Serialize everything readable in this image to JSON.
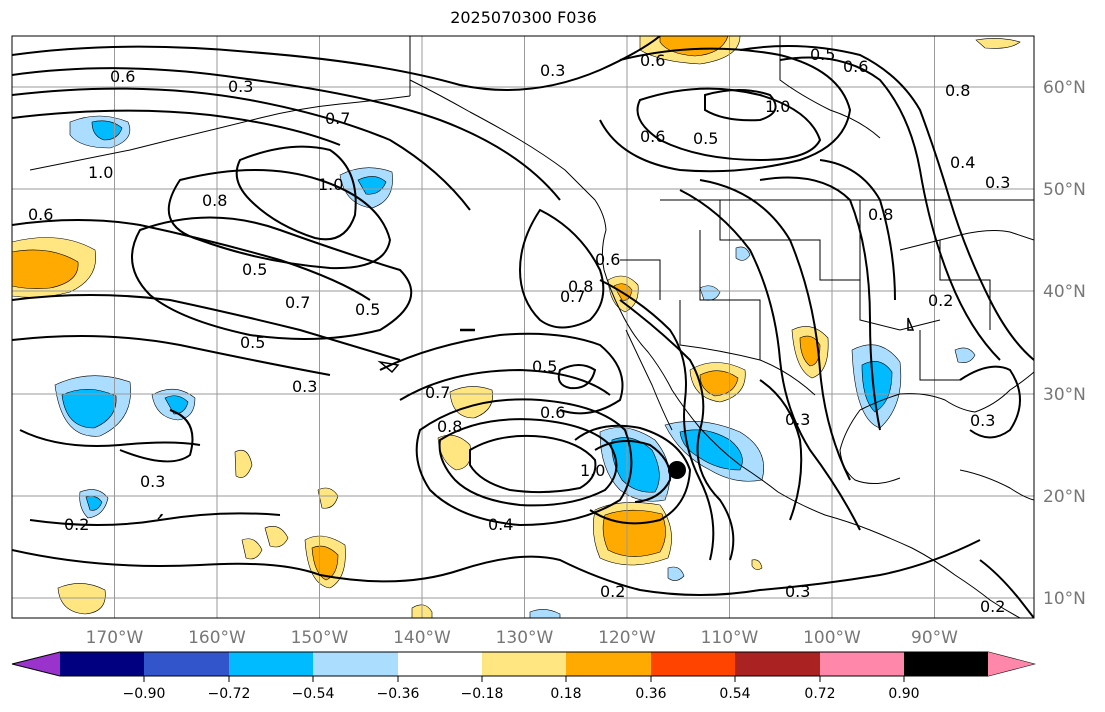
{
  "title": "2025070300 F036",
  "lon_labels": [
    "170°W",
    "160°W",
    "150°W",
    "140°W",
    "130°W",
    "120°W",
    "110°W",
    "100°W",
    "90°W"
  ],
  "lat_labels": [
    "60°N",
    "50°N",
    "40°N",
    "30°N",
    "20°N",
    "10°N"
  ],
  "colorbar": {
    "ticks": [
      "−0.90",
      "−0.72",
      "−0.54",
      "−0.36",
      "−0.18",
      "0.18",
      "0.36",
      "0.54",
      "0.72",
      "0.90"
    ],
    "colors": [
      "#9933cc",
      "#000080",
      "#3355cc",
      "#00bbff",
      "#aaddff",
      "#ffffff",
      "#ffe680",
      "#ffaa00",
      "#ff4400",
      "#aa2222",
      "#ff88aa"
    ]
  },
  "contour_labels": [
    {
      "text": "0.3"
    },
    {
      "text": "0.6"
    },
    {
      "text": "0.7"
    },
    {
      "text": "1.0"
    },
    {
      "text": "0.8"
    },
    {
      "text": "0.6"
    },
    {
      "text": "0.5"
    },
    {
      "text": "0.7"
    },
    {
      "text": "0.5"
    },
    {
      "text": "0.5"
    },
    {
      "text": "0.3"
    },
    {
      "text": "0.3"
    },
    {
      "text": "0.2"
    },
    {
      "text": "0.8"
    },
    {
      "text": "0.7"
    },
    {
      "text": "0.6"
    },
    {
      "text": "0.5"
    },
    {
      "text": "0.7"
    },
    {
      "text": "0.6"
    },
    {
      "text": "0.8"
    },
    {
      "text": "1.0"
    },
    {
      "text": "0.4"
    },
    {
      "text": "0.2"
    },
    {
      "text": "0.3"
    },
    {
      "text": "0.3"
    },
    {
      "text": "0.5"
    },
    {
      "text": "0.6"
    },
    {
      "text": "0.3"
    },
    {
      "text": "0.6"
    },
    {
      "text": "0.5"
    },
    {
      "text": "1.0"
    },
    {
      "text": "0.8"
    },
    {
      "text": "0.8"
    },
    {
      "text": "0.4"
    },
    {
      "text": "0.3"
    },
    {
      "text": "0.2"
    },
    {
      "text": "0.3"
    },
    {
      "text": "0.2"
    },
    {
      "text": "1.0"
    },
    {
      "text": "0.6"
    }
  ]
}
